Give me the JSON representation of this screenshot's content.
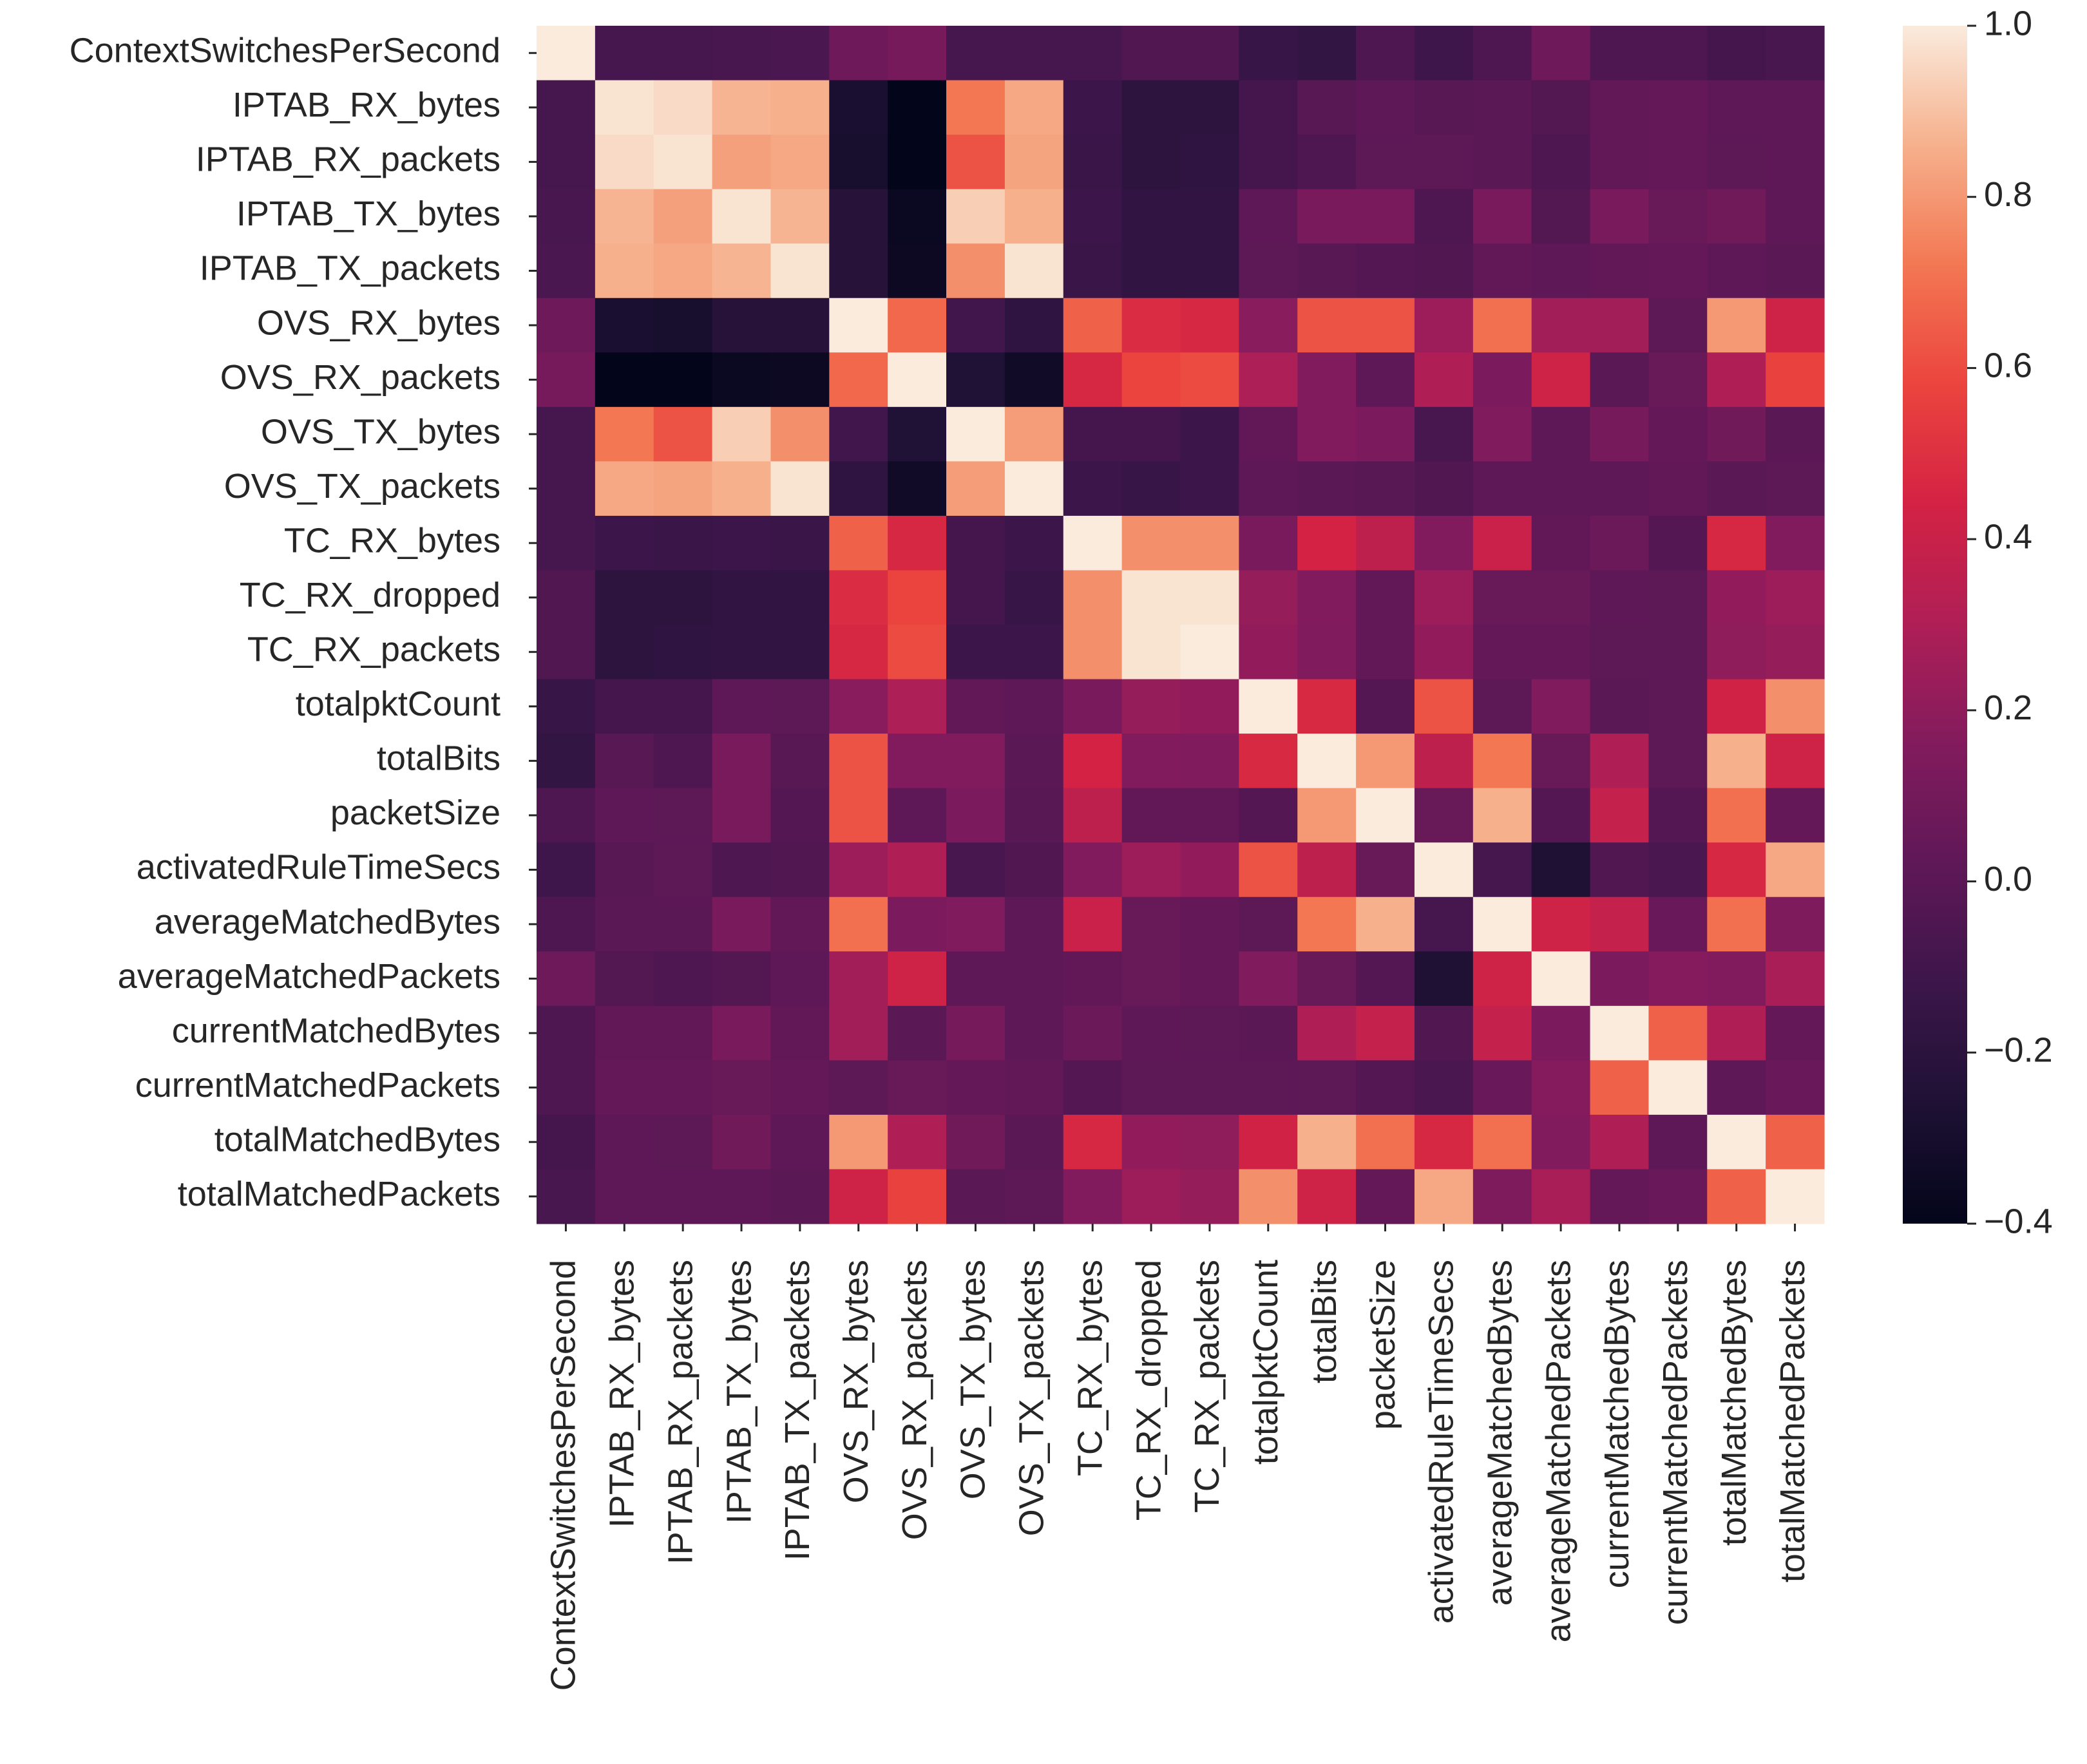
{
  "chart_data": {
    "type": "heatmap",
    "title": "",
    "xlabel": "",
    "ylabel": "",
    "labels": [
      "ContextSwitchesPerSecond",
      "IPTAB_RX_bytes",
      "IPTAB_RX_packets",
      "IPTAB_TX_bytes",
      "IPTAB_TX_packets",
      "OVS_RX_bytes",
      "OVS_RX_packets",
      "OVS_TX_bytes",
      "OVS_TX_packets",
      "TC_RX_bytes",
      "TC_RX_dropped",
      "TC_RX_packets",
      "totalpktCount",
      "totalBits",
      "packetSize",
      "activatedRuleTimeSecs",
      "averageMatchedBytes",
      "averageMatchedPackets",
      "currentMatchedBytes",
      "currentMatchedPackets",
      "totalMatchedBytes",
      "totalMatchedPackets"
    ],
    "matrix": [
      [
        1.0,
        -0.08,
        -0.08,
        -0.07,
        -0.06,
        0.08,
        0.11,
        -0.08,
        -0.08,
        -0.08,
        -0.04,
        -0.04,
        -0.14,
        -0.16,
        -0.05,
        -0.11,
        -0.05,
        0.08,
        -0.05,
        -0.05,
        -0.09,
        -0.07
      ],
      [
        -0.08,
        0.98,
        0.96,
        0.87,
        0.86,
        -0.28,
        -0.42,
        0.72,
        0.84,
        -0.12,
        -0.19,
        -0.19,
        -0.09,
        -0.01,
        0.02,
        -0.01,
        0.0,
        -0.03,
        0.03,
        0.04,
        0.02,
        0.02
      ],
      [
        -0.08,
        0.96,
        0.98,
        0.82,
        0.84,
        -0.29,
        -0.42,
        0.62,
        0.83,
        -0.13,
        -0.19,
        -0.18,
        -0.09,
        -0.05,
        0.01,
        0.01,
        0.0,
        -0.05,
        0.03,
        0.04,
        0.01,
        0.02
      ],
      [
        -0.07,
        0.87,
        0.82,
        0.98,
        0.87,
        -0.22,
        -0.36,
        0.93,
        0.86,
        -0.12,
        -0.17,
        -0.17,
        0.02,
        0.12,
        0.12,
        -0.05,
        0.12,
        -0.03,
        0.12,
        0.05,
        0.09,
        0.02
      ],
      [
        -0.06,
        0.86,
        0.84,
        0.87,
        0.98,
        -0.22,
        -0.35,
        0.78,
        0.98,
        -0.13,
        -0.17,
        -0.17,
        0.01,
        -0.01,
        -0.02,
        -0.04,
        0.03,
        0.02,
        0.03,
        0.04,
        0.02,
        0.0
      ],
      [
        0.08,
        -0.28,
        -0.29,
        -0.22,
        -0.22,
        1.0,
        0.68,
        -0.1,
        -0.18,
        0.66,
        0.48,
        0.46,
        0.18,
        0.62,
        0.62,
        0.24,
        0.7,
        0.26,
        0.26,
        0.01,
        0.8,
        0.42
      ],
      [
        0.11,
        -0.42,
        -0.42,
        -0.36,
        -0.35,
        0.68,
        1.0,
        -0.25,
        -0.33,
        0.46,
        0.58,
        0.6,
        0.29,
        0.16,
        0.02,
        0.3,
        0.13,
        0.42,
        0.0,
        0.05,
        0.3,
        0.57
      ],
      [
        -0.08,
        0.72,
        0.62,
        0.93,
        0.78,
        -0.1,
        -0.25,
        1.0,
        0.81,
        -0.09,
        -0.09,
        -0.12,
        0.03,
        0.16,
        0.13,
        -0.07,
        0.15,
        0.02,
        0.11,
        0.04,
        0.09,
        0.0
      ],
      [
        -0.08,
        0.84,
        0.83,
        0.86,
        0.98,
        -0.18,
        -0.33,
        0.81,
        1.0,
        -0.12,
        -0.14,
        -0.12,
        0.02,
        0.0,
        -0.01,
        -0.04,
        0.02,
        0.02,
        0.02,
        0.03,
        0.0,
        0.01
      ],
      [
        -0.08,
        -0.12,
        -0.13,
        -0.12,
        -0.13,
        0.66,
        0.46,
        -0.09,
        -0.12,
        1.0,
        0.78,
        0.78,
        0.12,
        0.44,
        0.36,
        0.16,
        0.4,
        0.03,
        0.07,
        -0.02,
        0.46,
        0.16
      ],
      [
        -0.04,
        -0.19,
        -0.19,
        -0.17,
        -0.17,
        0.48,
        0.58,
        -0.09,
        -0.14,
        0.78,
        0.98,
        0.98,
        0.22,
        0.16,
        0.03,
        0.24,
        0.05,
        0.05,
        0.02,
        0.01,
        0.21,
        0.24
      ],
      [
        -0.04,
        -0.19,
        -0.18,
        -0.17,
        -0.17,
        0.46,
        0.6,
        -0.12,
        -0.12,
        0.78,
        0.98,
        1.0,
        0.21,
        0.15,
        0.03,
        0.21,
        0.04,
        0.04,
        0.01,
        0.01,
        0.2,
        0.22
      ],
      [
        -0.14,
        -0.09,
        -0.09,
        0.02,
        0.01,
        0.18,
        0.29,
        0.03,
        0.02,
        0.12,
        0.22,
        0.21,
        1.0,
        0.47,
        -0.02,
        0.62,
        0.01,
        0.15,
        0.0,
        0.01,
        0.43,
        0.78
      ],
      [
        -0.16,
        -0.01,
        -0.05,
        0.12,
        -0.01,
        0.62,
        0.16,
        0.16,
        0.0,
        0.44,
        0.16,
        0.15,
        0.47,
        1.0,
        0.8,
        0.36,
        0.72,
        0.05,
        0.3,
        0.01,
        0.86,
        0.42
      ],
      [
        -0.05,
        0.02,
        0.01,
        0.12,
        -0.02,
        0.62,
        0.02,
        0.13,
        -0.01,
        0.36,
        0.03,
        0.03,
        -0.02,
        0.8,
        1.0,
        0.05,
        0.86,
        -0.02,
        0.38,
        -0.02,
        0.7,
        0.04
      ],
      [
        -0.11,
        -0.01,
        0.01,
        -0.05,
        -0.04,
        0.24,
        0.3,
        -0.07,
        -0.04,
        0.16,
        0.24,
        0.21,
        0.62,
        0.36,
        0.05,
        1.0,
        -0.08,
        -0.26,
        -0.04,
        -0.06,
        0.46,
        0.84
      ],
      [
        -0.05,
        0.0,
        0.0,
        0.12,
        0.03,
        0.7,
        0.13,
        0.15,
        0.02,
        0.4,
        0.05,
        0.04,
        0.01,
        0.72,
        0.86,
        -0.08,
        1.0,
        0.42,
        0.38,
        0.06,
        0.7,
        0.14
      ],
      [
        0.08,
        -0.03,
        -0.05,
        -0.03,
        0.02,
        0.26,
        0.42,
        0.02,
        0.02,
        0.03,
        0.05,
        0.04,
        0.15,
        0.05,
        -0.02,
        -0.26,
        0.42,
        1.0,
        0.13,
        0.17,
        0.16,
        0.28
      ],
      [
        -0.05,
        0.03,
        0.03,
        0.12,
        0.03,
        0.26,
        0.0,
        0.11,
        0.02,
        0.07,
        0.02,
        0.01,
        0.0,
        0.3,
        0.38,
        -0.04,
        0.38,
        0.13,
        1.0,
        0.66,
        0.3,
        0.04
      ],
      [
        -0.05,
        0.04,
        0.04,
        0.05,
        0.04,
        0.01,
        0.05,
        0.04,
        0.03,
        -0.02,
        0.01,
        0.01,
        0.01,
        0.01,
        -0.02,
        -0.06,
        0.06,
        0.17,
        0.66,
        1.0,
        0.02,
        0.06
      ],
      [
        -0.09,
        0.02,
        0.01,
        0.09,
        0.02,
        0.8,
        0.3,
        0.09,
        0.0,
        0.46,
        0.21,
        0.2,
        0.43,
        0.86,
        0.7,
        0.46,
        0.7,
        0.16,
        0.3,
        0.02,
        1.0,
        0.66
      ],
      [
        -0.07,
        0.02,
        0.02,
        0.02,
        0.0,
        0.42,
        0.57,
        0.0,
        0.01,
        0.16,
        0.24,
        0.22,
        0.78,
        0.42,
        0.04,
        0.84,
        0.14,
        0.28,
        0.04,
        0.06,
        0.66,
        1.0
      ]
    ],
    "vmin": -0.4,
    "vmax": 1.0,
    "colormap": "rocket",
    "colorbar": {
      "ticks": [
        1.0,
        0.8,
        0.6,
        0.4,
        0.2,
        0.0,
        -0.2,
        -0.4
      ],
      "tick_labels": [
        "1.0",
        "0.8",
        "0.6",
        "0.4",
        "0.2",
        "0.0",
        "−0.2",
        "−0.4"
      ]
    }
  }
}
